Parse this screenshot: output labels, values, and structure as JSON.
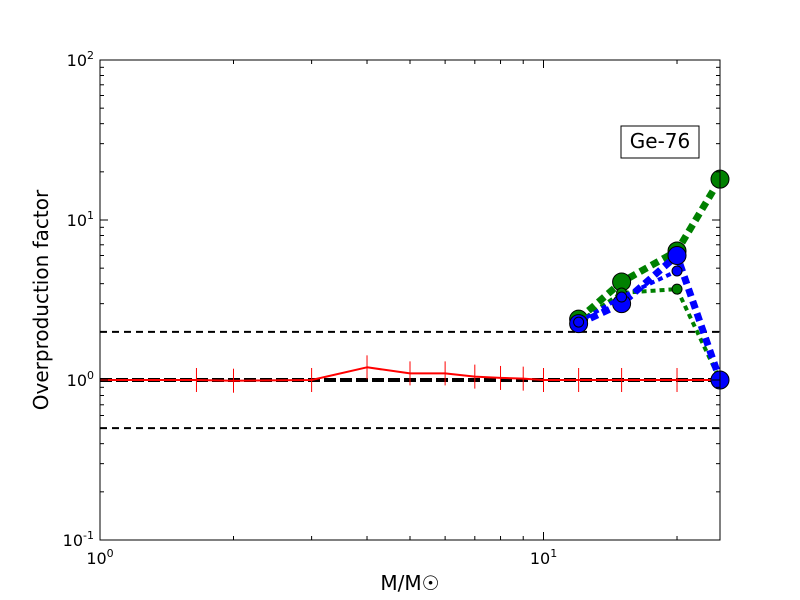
{
  "chart_data": {
    "type": "line",
    "title": "",
    "xlabel": "M/M☉",
    "ylabel": "Overproduction factor",
    "xscale": "log",
    "yscale": "log",
    "xlim": [
      1,
      25
    ],
    "ylim": [
      0.1,
      100
    ],
    "x_ticks": [
      {
        "value": 1,
        "base": "10",
        "exp": "0"
      },
      {
        "value": 10,
        "base": "10",
        "exp": "1"
      }
    ],
    "y_ticks": [
      {
        "value": 0.1,
        "base": "10",
        "exp": "-1"
      },
      {
        "value": 1,
        "base": "10",
        "exp": "0"
      },
      {
        "value": 10,
        "base": "10",
        "exp": "1"
      },
      {
        "value": 100,
        "base": "10",
        "exp": "2"
      }
    ],
    "annotation": "Ge-76",
    "reference_lines": [
      {
        "y": 2.0,
        "style": "dashed",
        "color": "#000000"
      },
      {
        "y": 1.0,
        "style": "dashed-thick",
        "color": "#000000"
      },
      {
        "y": 0.5,
        "style": "dashed",
        "color": "#000000"
      }
    ],
    "series": [
      {
        "color": "#ff0000",
        "style": "solid-with-vertical-tick-markers",
        "x": [
          1,
          1.65,
          2,
          3,
          4,
          5,
          6,
          7,
          8,
          9,
          10,
          12,
          15,
          20,
          25
        ],
        "y": [
          1.0,
          1.0,
          0.99,
          1.0,
          1.2,
          1.1,
          1.1,
          1.05,
          1.03,
          1.02,
          1.0,
          1.0,
          1.0,
          1.0,
          1.0
        ]
      },
      {
        "color": "#008000",
        "style": "dotted-thick",
        "marker": "circle-large",
        "x": [
          12,
          15,
          20,
          25
        ],
        "y": [
          2.4,
          4.1,
          6.4,
          18.0
        ]
      },
      {
        "color": "#008000",
        "style": "dotted",
        "marker": "circle-small",
        "x": [
          12,
          15,
          20,
          25
        ],
        "y": [
          2.3,
          3.5,
          3.7,
          1.0
        ]
      },
      {
        "color": "#0000ff",
        "style": "dotted-thick",
        "marker": "circle-large",
        "x": [
          12,
          15,
          20,
          25
        ],
        "y": [
          2.25,
          3.0,
          6.0,
          1.0
        ]
      },
      {
        "color": "#0000ff",
        "style": "dotted",
        "marker": "circle-small",
        "x": [
          12,
          15,
          20
        ],
        "y": [
          2.3,
          3.3,
          4.8
        ]
      }
    ]
  }
}
